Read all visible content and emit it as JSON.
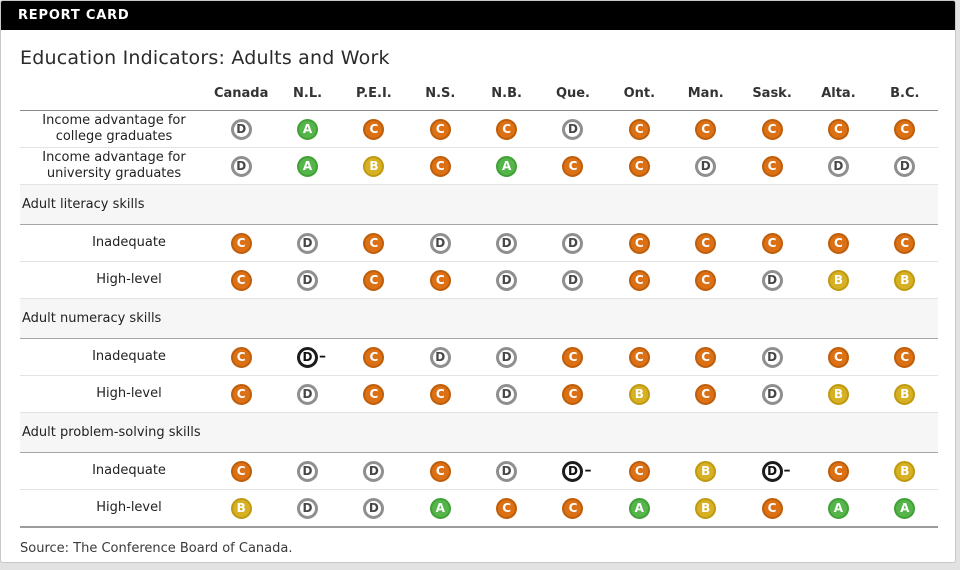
{
  "banner": {
    "label": "REPORT CARD"
  },
  "chart_data": {
    "type": "table",
    "title": "Education Indicators: Adults and Work",
    "columns": [
      "Canada",
      "N.L.",
      "P.E.I.",
      "N.S.",
      "N.B.",
      "Que.",
      "Ont.",
      "Man.",
      "Sask.",
      "Alta.",
      "B.C."
    ],
    "rows": [
      {
        "section": false,
        "indent": false,
        "label": "Income advantage for college graduates",
        "grades": [
          "D",
          "A",
          "C",
          "C",
          "C",
          "D",
          "C",
          "C",
          "C",
          "C",
          "C"
        ]
      },
      {
        "section": false,
        "indent": false,
        "label": "Income advantage for university graduates",
        "grades": [
          "D",
          "A",
          "B",
          "C",
          "A",
          "C",
          "C",
          "D",
          "C",
          "D",
          "D"
        ]
      },
      {
        "section": true,
        "label": "Adult literacy skills"
      },
      {
        "section": false,
        "indent": true,
        "label": "Inadequate",
        "grades": [
          "C",
          "D",
          "C",
          "D",
          "D",
          "D",
          "C",
          "C",
          "C",
          "C",
          "C"
        ]
      },
      {
        "section": false,
        "indent": true,
        "label": "High-level",
        "grades": [
          "C",
          "D",
          "C",
          "C",
          "D",
          "D",
          "C",
          "C",
          "D",
          "B",
          "B"
        ]
      },
      {
        "section": true,
        "label": "Adult numeracy skills"
      },
      {
        "section": false,
        "indent": true,
        "label": "Inadequate",
        "grades": [
          "C",
          "D–",
          "C",
          "D",
          "D",
          "C",
          "C",
          "C",
          "D",
          "C",
          "C"
        ]
      },
      {
        "section": false,
        "indent": true,
        "label": "High-level",
        "grades": [
          "C",
          "D",
          "C",
          "C",
          "D",
          "C",
          "B",
          "C",
          "D",
          "B",
          "B"
        ]
      },
      {
        "section": true,
        "label": "Adult problem-solving skills"
      },
      {
        "section": false,
        "indent": true,
        "label": "Inadequate",
        "grades": [
          "C",
          "D",
          "D",
          "C",
          "D",
          "D–",
          "C",
          "B",
          "D–",
          "C",
          "B"
        ]
      },
      {
        "section": false,
        "indent": true,
        "label": "High-level",
        "grades": [
          "B",
          "D",
          "D",
          "A",
          "C",
          "C",
          "A",
          "B",
          "C",
          "A",
          "A"
        ]
      }
    ],
    "grade_colors": {
      "A": "#55b54a",
      "B": "#d7b024",
      "C": "#db7015",
      "D": "#8f8f8f",
      "D–": "#1c1c1c"
    },
    "layout_hints": {
      "grid": "horizontal row separators",
      "legend": "none"
    }
  },
  "source": "Source: The Conference Board of Canada."
}
